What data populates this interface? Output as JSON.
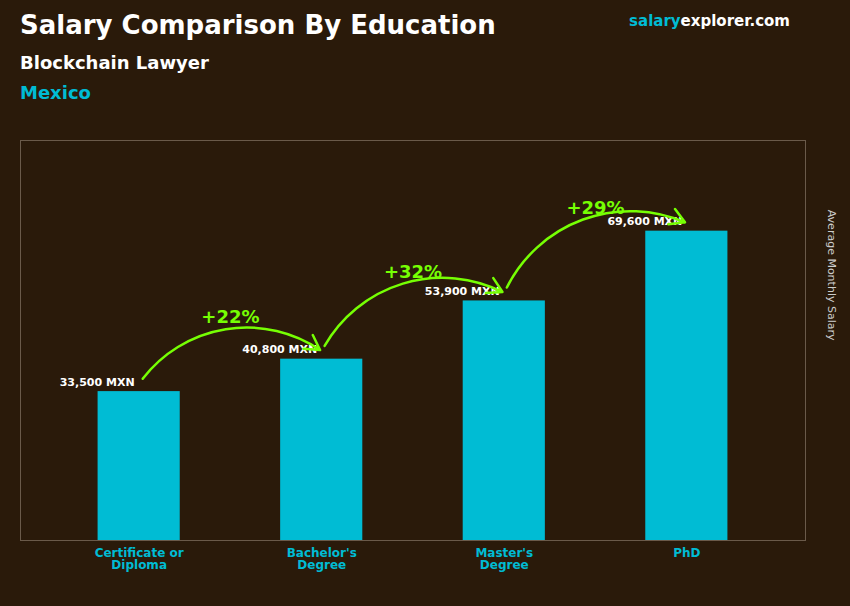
{
  "chart_data": {
    "type": "bar",
    "title": "Salary Comparison By Education",
    "subtitle": [
      "Blockchain Lawyer",
      "Mexico"
    ],
    "source": [
      "salary",
      "explorer.com"
    ],
    "ylabel": "Average Monthly Salary",
    "categories": [
      "Certificate or\nDiploma",
      "Bachelor's\nDegree",
      "Master's\nDegree",
      "PhD"
    ],
    "values": [
      33500,
      40800,
      53900,
      69600
    ],
    "value_labels": [
      "33,500 MXN",
      "40,800 MXN",
      "53,900 MXN",
      "69,600 MXN"
    ],
    "data_labels": true,
    "color": "#00bcd4",
    "ylim": [
      0,
      90000
    ],
    "tick_labels": "x",
    "annotations": [
      {
        "text": "+22%",
        "color": "#76ff03"
      },
      {
        "text": "+32%",
        "color": "#76ff03"
      },
      {
        "text": "+29%",
        "color": "#76ff03"
      }
    ]
  }
}
